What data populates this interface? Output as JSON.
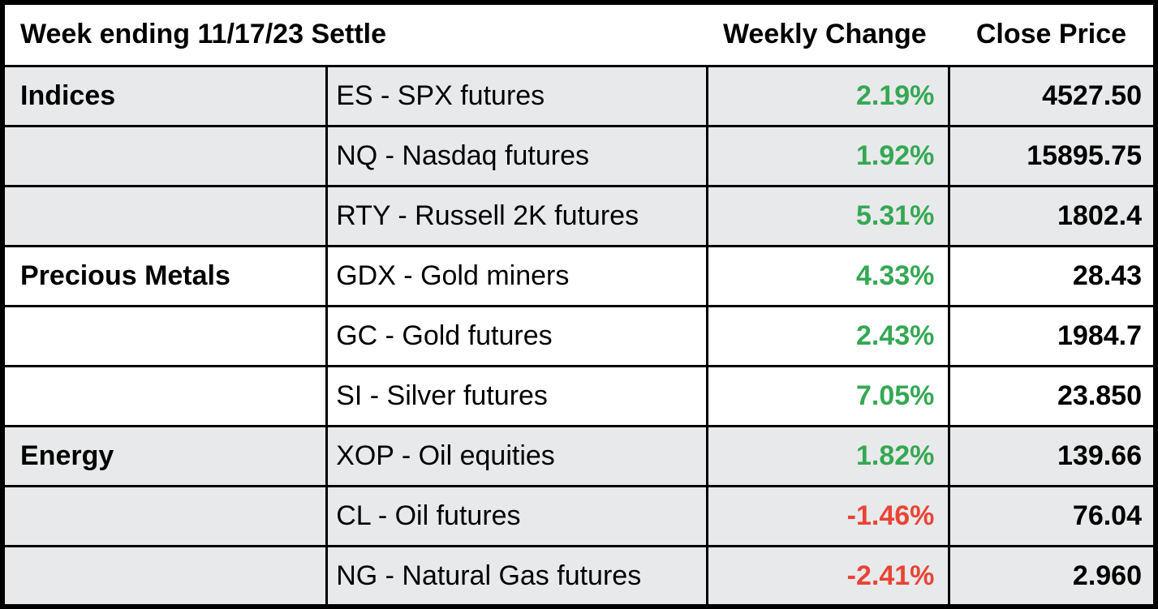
{
  "chart_data": {
    "type": "table",
    "title": "Week ending 11/17/23 Settle",
    "column_headers": {
      "weekly_change": "Weekly Change",
      "close_price": "Close Price"
    },
    "groups": [
      "Indices",
      "Precious Metals",
      "Energy"
    ],
    "rows": [
      {
        "group": "Indices",
        "category_label": "Indices",
        "instrument": "ES - SPX futures",
        "weekly_change": "2.19%",
        "close_price": "4527.50"
      },
      {
        "group": "Indices",
        "category_label": "",
        "instrument": "NQ - Nasdaq futures",
        "weekly_change": "1.92%",
        "close_price": "15895.75"
      },
      {
        "group": "Indices",
        "category_label": "",
        "instrument": "RTY - Russell 2K futures",
        "weekly_change": "5.31%",
        "close_price": "1802.4"
      },
      {
        "group": "Precious Metals",
        "category_label": "Precious Metals",
        "instrument": "GDX - Gold miners",
        "weekly_change": "4.33%",
        "close_price": "28.43"
      },
      {
        "group": "Precious Metals",
        "category_label": "",
        "instrument": "GC - Gold futures",
        "weekly_change": "2.43%",
        "close_price": "1984.7"
      },
      {
        "group": "Precious Metals",
        "category_label": "",
        "instrument": "SI - Silver futures",
        "weekly_change": "7.05%",
        "close_price": "23.850"
      },
      {
        "group": "Energy",
        "category_label": "Energy",
        "instrument": "XOP - Oil equities",
        "weekly_change": "1.82%",
        "close_price": "139.66"
      },
      {
        "group": "Energy",
        "category_label": "",
        "instrument": "CL - Oil futures",
        "weekly_change": "-1.46%",
        "close_price": "76.04"
      },
      {
        "group": "Energy",
        "category_label": "",
        "instrument": "NG - Natural Gas futures",
        "weekly_change": "-2.41%",
        "close_price": "2.960"
      }
    ],
    "colors": {
      "positive": "#34a853",
      "negative": "#ea4335",
      "row_shade": "#e8e9ea",
      "border": "#000000",
      "background": "#ffffff",
      "text": "#000000"
    }
  }
}
